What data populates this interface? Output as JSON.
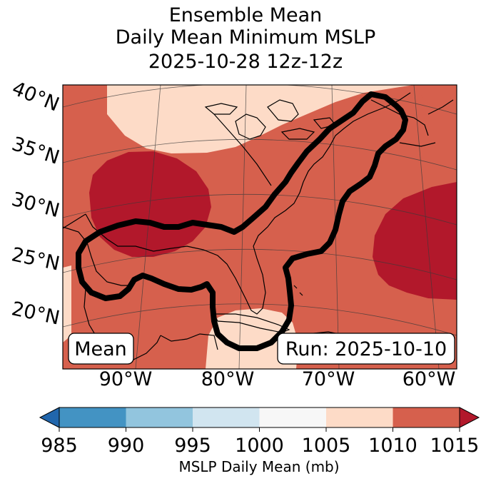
{
  "title": {
    "line1": "Ensemble Mean",
    "line2": "Daily Mean Minimum MSLP",
    "line3": "2025-10-28 12z-12z"
  },
  "map": {
    "lat_labels": [
      "40°N",
      "35°N",
      "30°N",
      "25°N",
      "20°N"
    ],
    "lon_labels": [
      "90°W",
      "80°W",
      "70°W",
      "60°W"
    ],
    "mean_box": "Mean",
    "run_box": "Run: 2025-10-10",
    "colors": {
      "c1010_1015": "#d6604d",
      "c1015plus": "#b2182b",
      "c1005_1010": "#fddbc7",
      "c1000_1005": "#f7f7f7",
      "contour": "#000000"
    }
  },
  "colorbar": {
    "ticks": [
      "985",
      "990",
      "995",
      "1000",
      "1005",
      "1010",
      "1015"
    ],
    "label": "MSLP Daily Mean (mb)",
    "colors": [
      "#2166ac",
      "#4393c3",
      "#92c5de",
      "#d1e5f0",
      "#f7f7f7",
      "#fddbc7",
      "#d6604d",
      "#b2182b"
    ]
  },
  "chart_data": {
    "type": "map",
    "title": "Ensemble Mean Daily Mean Minimum MSLP 2025-10-28 12z-12z",
    "variable": "MSLP Daily Mean (mb)",
    "colorbar_levels": [
      985,
      990,
      995,
      1000,
      1005,
      1010,
      1015
    ],
    "colorbar_extend": "both",
    "lat_ticks_deg_N": [
      40,
      35,
      30,
      25,
      20
    ],
    "lon_ticks_deg_W": [
      90,
      80,
      70,
      60
    ]
  }
}
